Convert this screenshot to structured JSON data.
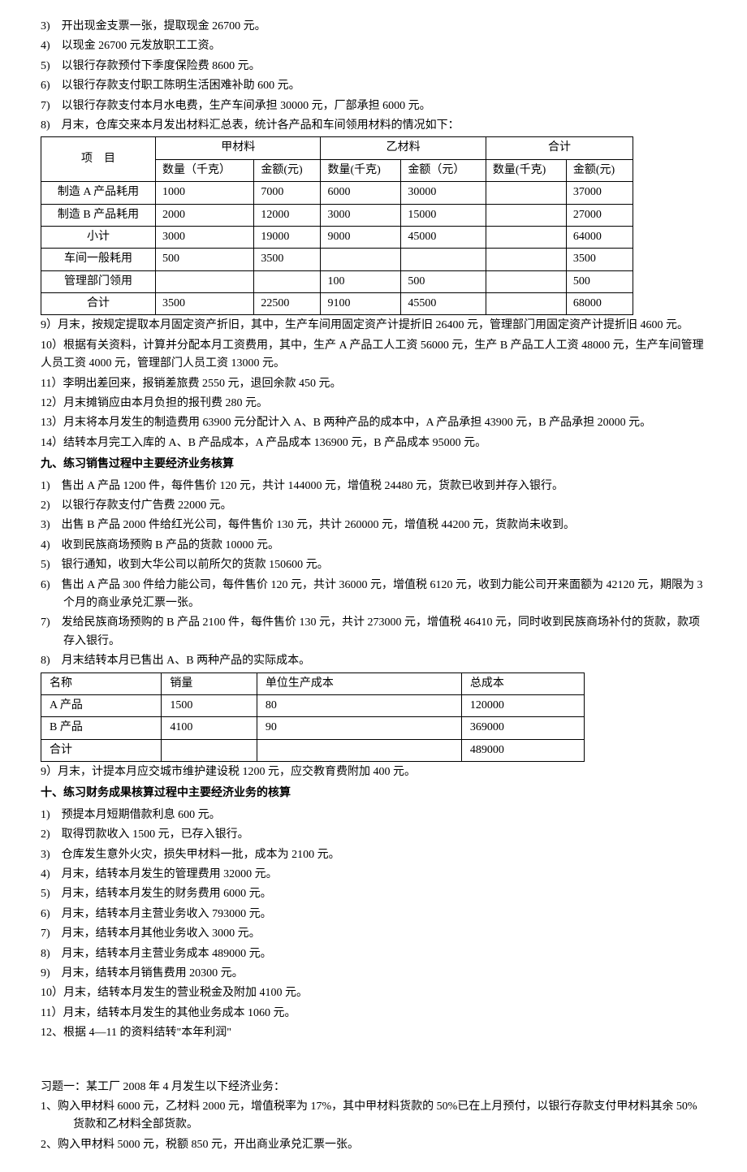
{
  "list8_items": [
    {
      "num": "3)",
      "text": "开出现金支票一张，提取现金 26700 元。"
    },
    {
      "num": "4)",
      "text": "以现金 26700 元发放职工工资。"
    },
    {
      "num": "5)",
      "text": "以银行存款预付下季度保险费 8600 元。"
    },
    {
      "num": "6)",
      "text": "以银行存款支付职工陈明生活困难补助 600 元。"
    },
    {
      "num": "7)",
      "text": "以银行存款支付本月水电费，生产车间承担 30000 元，厂部承担 6000 元。"
    },
    {
      "num": "8)",
      "text": "月末，仓库交来本月发出材料汇总表，统计各产品和车间领用材料的情况如下："
    }
  ],
  "table1": {
    "header_row1": [
      "项　目",
      "甲材料",
      "乙材料",
      "合计"
    ],
    "header_row2": [
      "数量（千克）",
      "金额(元)",
      "数量(千克)",
      "金额（元）",
      "数量(千克)",
      "金额(元)"
    ],
    "rows": [
      [
        "制造 A 产品耗用",
        "1000",
        "7000",
        "6000",
        "30000",
        "",
        "37000"
      ],
      [
        "制造 B 产品耗用",
        "2000",
        "12000",
        "3000",
        "15000",
        "",
        "27000"
      ],
      [
        "小计",
        "3000",
        "19000",
        "9000",
        "45000",
        "",
        "64000"
      ],
      [
        "车间一般耗用",
        "500",
        "3500",
        "",
        "",
        "",
        "3500"
      ],
      [
        "管理部门领用",
        "",
        "",
        "100",
        "500",
        "",
        "500"
      ],
      [
        "合计",
        "3500",
        "22500",
        "9100",
        "45500",
        "",
        "68000"
      ]
    ]
  },
  "para9": "9）月末，按规定提取本月固定资产折旧，其中，生产车间用固定资产计提折旧 26400 元，管理部门用固定资产计提折旧 4600 元。",
  "para10": "10）根据有关资料，计算并分配本月工资费用，其中，生产 A 产品工人工资 56000 元，生产 B 产品工人工资 48000 元，生产车间管理人员工资 4000 元，管理部门人员工资 13000 元。",
  "para11": "11）李明出差回来，报销差旅费 2550 元，退回余款 450 元。",
  "para12": "12）月末摊销应由本月负担的报刊费 280 元。",
  "para13": "13）月末将本月发生的制造费用 63900 元分配计入 A、B 两种产品的成本中，A 产品承担 43900 元，B 产品承担 20000 元。",
  "para14": "14）结转本月完工入库的 A、B 产品成本，A 产品成本 136900 元，B 产品成本 95000 元。",
  "section9_heading": "九、练习销售过程中主要经济业务核算",
  "list9_items": [
    {
      "num": "1)",
      "text": "售出 A 产品 1200 件，每件售价 120 元，共计 144000 元，增值税 24480 元，货款已收到并存入银行。"
    },
    {
      "num": "2)",
      "text": "以银行存款支付广告费 22000 元。"
    },
    {
      "num": "3)",
      "text": "出售 B 产品 2000 件给红光公司，每件售价 130 元，共计 260000 元，增值税 44200 元，货款尚未收到。"
    },
    {
      "num": "4)",
      "text": "收到民族商场预购 B 产品的货款 10000 元。"
    },
    {
      "num": "5)",
      "text": "银行通知，收到大华公司以前所欠的货款 150600 元。"
    },
    {
      "num": "6)",
      "text": "售出 A 产品 300 件给力能公司，每件售价 120 元，共计 36000 元，增值税 6120 元，收到力能公司开来面额为 42120 元，期限为 3 个月的商业承兑汇票一张。"
    },
    {
      "num": "7)",
      "text": "发给民族商场预购的 B 产品 2100 件，每件售价 130 元，共计 273000 元，增值税 46410 元，同时收到民族商场补付的货款，款项存入银行。"
    },
    {
      "num": "8)",
      "text": "月末结转本月已售出 A、B 两种产品的实际成本。"
    }
  ],
  "table2": {
    "header": [
      "名称",
      "销量",
      "单位生产成本",
      "总成本"
    ],
    "rows": [
      [
        "A 产品",
        "1500",
        "80",
        "120000"
      ],
      [
        "B 产品",
        "4100",
        "90",
        "369000"
      ],
      [
        "合计",
        "",
        "",
        "489000"
      ]
    ]
  },
  "para_s9_9": "9）月末，计提本月应交城市维护建设税 1200 元，应交教育费附加 400 元。",
  "section10_heading": "十、练习财务成果核算过程中主要经济业务的核算",
  "list10_items": [
    {
      "num": "1)",
      "text": "预提本月短期借款利息 600 元。"
    },
    {
      "num": "2)",
      "text": "取得罚款收入 1500 元，已存入银行。"
    },
    {
      "num": "3)",
      "text": "仓库发生意外火灾，损失甲材料一批，成本为 2100 元。"
    },
    {
      "num": "4)",
      "text": "月末，结转本月发生的管理费用 32000 元。"
    },
    {
      "num": "5)",
      "text": "月末，结转本月发生的财务费用 6000 元。"
    },
    {
      "num": "6)",
      "text": "月末，结转本月主营业务收入 793000 元。"
    },
    {
      "num": "7)",
      "text": "月末，结转本月其他业务收入 3000 元。"
    },
    {
      "num": "8)",
      "text": "月末，结转本月主营业务成本 489000 元。"
    },
    {
      "num": "9)",
      "text": "月末，结转本月销售费用 20300 元。"
    }
  ],
  "para_s10_10": "10）月末，结转本月发生的营业税金及附加 4100 元。",
  "para_s10_11": "11）月末，结转本月发生的其他业务成本 1060 元。",
  "para_s10_12": "12、根据 4—11 的资料结转\"本年利润\"",
  "exercise1_heading": "习题一：某工厂 2008 年 4 月发生以下经济业务：",
  "exercise1_items": [
    {
      "num": "1、",
      "text": "购入甲材料 6000 元，乙材料 2000 元，增值税率为 17%，其中甲材料货款的 50%已在上月预付，以银行存款支付甲材料其余 50%货款和乙材料全部货款。"
    },
    {
      "num": "2、",
      "text": "购入甲材料 5000 元，税额 850 元，开出商业承兑汇票一张。"
    }
  ]
}
